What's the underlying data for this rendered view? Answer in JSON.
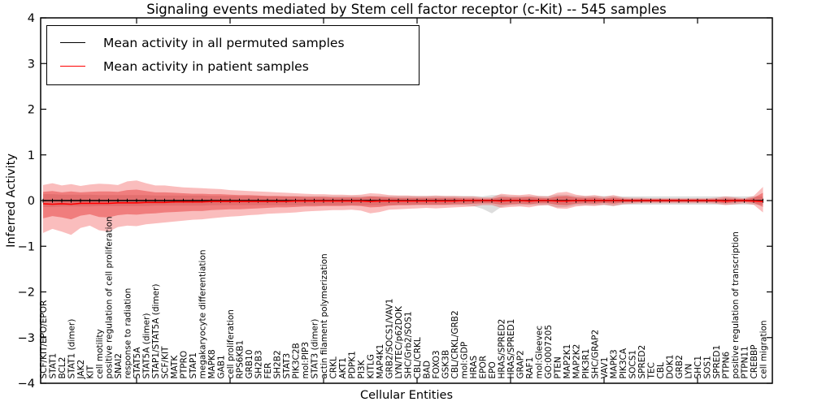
{
  "figure": {
    "title": "Signaling events mediated by Stem cell factor receptor (c-Kit) -- 545 samples",
    "xlabel": "Cellular Entities",
    "ylabel": "Inferred Activity"
  },
  "legend": {
    "position": "upper left",
    "entries": [
      {
        "label": "Mean activity in all permuted samples",
        "color": "#000000"
      },
      {
        "label": "Mean activity in patient samples",
        "color": "#ff0000"
      }
    ]
  },
  "colors": {
    "frame": "#000000",
    "patient_line": "#ff0000",
    "permuted_line": "#000000",
    "patient_band_outer": "rgba(240,50,50,0.32)",
    "patient_band_inner": "rgba(225,30,30,0.40)",
    "permuted_band": "rgba(128,128,128,0.27)"
  },
  "chart_data": {
    "type": "line",
    "title": "Signaling events mediated by Stem cell factor receptor (c-Kit) -- 545 samples",
    "xlabel": "Cellular Entities",
    "ylabel": "Inferred Activity",
    "ylim": [
      -4,
      4
    ],
    "yticks": [
      4,
      3,
      2,
      1,
      0,
      -1,
      -2,
      -3,
      -4
    ],
    "x_major_tick_indices": [
      10,
      20,
      30,
      40,
      50,
      60,
      70
    ],
    "grid": false,
    "legend_position": "upper left",
    "categories": [
      "SCF/KIT/EPO/EPOR",
      "STAT1",
      "BCL2",
      "STAT1 (dimer)",
      "JAK2",
      "KIT",
      "cell motility",
      "positive regulation of cell proliferation",
      "SNAI2",
      "response to radiation",
      "STAT5A",
      "STAT5A (dimer)",
      "STAP1/STAT5A (dimer)",
      "SCF/KIT",
      "MATK",
      "PTPRO",
      "STAP1",
      "megakaryocyte differentiation",
      "MAPK8",
      "GAB1",
      "cell proliferation",
      "RPS6KB1",
      "GRB10",
      "SH2B3",
      "FER",
      "SH2B2",
      "STAT3",
      "PIK3C2B",
      "mol:PIP3",
      "STAT3 (dimer)",
      "actin filament polymerization",
      "CRKL",
      "AKT1",
      "PDPK1",
      "PI3K",
      "KITLG",
      "MAP4K1",
      "GRB2/SOCS1/VAV1",
      "LYN/TEC/p62DOK",
      "SHC/Grb2/SOS1",
      "CBL/CRKL",
      "BAD",
      "FOXO3",
      "GSK3B",
      "CBL/CRKL/GRB2",
      "mol:GDP",
      "HRAS",
      "EPOR",
      "EPO",
      "HRAS/SPRED2",
      "HRAS/SPRED1",
      "GRAP2",
      "RAF1",
      "mol:Gleevec",
      "GO:0007205",
      "PTEN",
      "MAP2K1",
      "MAP2K2",
      "PIK3R1",
      "SHC/GRAP2",
      "VAV1",
      "MAPK3",
      "PIK3CA",
      "SOCS1",
      "SPRED2",
      "TEC",
      "CBL",
      "DOK1",
      "GRB2",
      "LYN",
      "SHC1",
      "SOS1",
      "SPRED1",
      "PTPN6",
      "positive regulation of transcription",
      "PTPN11",
      "CREBBP",
      "cell migration"
    ],
    "series": [
      {
        "name": "Mean activity in all permuted samples",
        "color": "#000000",
        "constant": 0.0,
        "marker": "tick"
      },
      {
        "name": "Mean activity in patient samples",
        "color": "#ff0000",
        "values": [
          -0.07,
          -0.08,
          -0.07,
          -0.08,
          -0.06,
          -0.06,
          -0.06,
          -0.06,
          -0.05,
          -0.05,
          -0.05,
          -0.04,
          -0.04,
          -0.04,
          -0.03,
          -0.03,
          -0.03,
          -0.03,
          -0.02,
          -0.02,
          -0.02,
          -0.02,
          -0.02,
          -0.02,
          -0.02,
          -0.02,
          -0.02,
          -0.01,
          -0.01,
          -0.01,
          -0.01,
          -0.01,
          -0.01,
          -0.01,
          -0.01,
          -0.02,
          -0.01,
          -0.01,
          -0.01,
          -0.01,
          -0.01,
          -0.01,
          -0.01,
          -0.01,
          -0.01,
          0,
          0,
          0,
          0,
          -0.01,
          0,
          0,
          -0.01,
          0,
          0,
          -0.01,
          -0.01,
          0,
          0,
          0,
          0,
          0,
          0,
          0,
          0,
          0,
          0,
          0,
          0,
          0,
          0,
          0,
          0,
          -0.01,
          0,
          0,
          -0.01,
          -0.02
        ]
      }
    ],
    "bands": [
      {
        "name": "permuted-activity-range",
        "color": "rgba(128,128,128,0.27)",
        "hi": [
          0.14,
          0.14,
          0.13,
          0.13,
          0.13,
          0.13,
          0.12,
          0.12,
          0.12,
          0.12,
          0.12,
          0.12,
          0.11,
          0.11,
          0.11,
          0.11,
          0.11,
          0.11,
          0.1,
          0.1,
          0.1,
          0.1,
          0.1,
          0.1,
          0.1,
          0.1,
          0.1,
          0.1,
          0.1,
          0.1,
          0.1,
          0.1,
          0.1,
          0.1,
          0.1,
          0.1,
          0.1,
          0.1,
          0.1,
          0.1,
          0.1,
          0.1,
          0.1,
          0.1,
          0.1,
          0.1,
          0.1,
          0.09,
          0.12,
          0.12,
          0.1,
          0.1,
          0.1,
          0.1,
          0.1,
          0.13,
          0.13,
          0.1,
          0.1,
          0.1,
          0.1,
          0.1,
          0.09,
          0.09,
          0.09,
          0.09,
          0.09,
          0.09,
          0.09,
          0.09,
          0.09,
          0.09,
          0.09,
          0.09,
          0.09,
          0.09,
          0.09,
          0.09
        ],
        "lo": [
          -0.14,
          -0.14,
          -0.13,
          -0.13,
          -0.13,
          -0.13,
          -0.12,
          -0.12,
          -0.12,
          -0.12,
          -0.12,
          -0.12,
          -0.11,
          -0.11,
          -0.11,
          -0.11,
          -0.11,
          -0.11,
          -0.1,
          -0.1,
          -0.1,
          -0.1,
          -0.1,
          -0.1,
          -0.1,
          -0.1,
          -0.1,
          -0.1,
          -0.1,
          -0.1,
          -0.1,
          -0.1,
          -0.1,
          -0.1,
          -0.1,
          -0.1,
          -0.1,
          -0.1,
          -0.1,
          -0.1,
          -0.1,
          -0.1,
          -0.1,
          -0.1,
          -0.1,
          -0.1,
          -0.12,
          -0.18,
          -0.28,
          -0.14,
          -0.1,
          -0.1,
          -0.1,
          -0.1,
          -0.1,
          -0.15,
          -0.14,
          -0.1,
          -0.1,
          -0.1,
          -0.1,
          -0.12,
          -0.09,
          -0.09,
          -0.09,
          -0.09,
          -0.09,
          -0.09,
          -0.09,
          -0.09,
          -0.09,
          -0.09,
          -0.09,
          -0.09,
          -0.09,
          -0.09,
          -0.09,
          -0.09
        ]
      },
      {
        "name": "patient-activity-range-outer",
        "color": "rgba(240,50,50,0.32)",
        "hi": [
          0.34,
          0.38,
          0.33,
          0.36,
          0.32,
          0.35,
          0.37,
          0.36,
          0.34,
          0.42,
          0.44,
          0.38,
          0.33,
          0.33,
          0.31,
          0.29,
          0.28,
          0.27,
          0.26,
          0.25,
          0.23,
          0.22,
          0.21,
          0.2,
          0.19,
          0.18,
          0.17,
          0.16,
          0.15,
          0.14,
          0.14,
          0.13,
          0.13,
          0.12,
          0.13,
          0.16,
          0.15,
          0.12,
          0.11,
          0.11,
          0.1,
          0.1,
          0.11,
          0.1,
          0.1,
          0.09,
          0.09,
          0.07,
          0.07,
          0.15,
          0.13,
          0.12,
          0.14,
          0.1,
          0.09,
          0.17,
          0.19,
          0.13,
          0.1,
          0.12,
          0.08,
          0.12,
          0.07,
          0.06,
          0.06,
          0.05,
          0.05,
          0.05,
          0.05,
          0.05,
          0.05,
          0.05,
          0.06,
          0.09,
          0.07,
          0.05,
          0.1,
          0.3
        ],
        "lo": [
          -0.71,
          -0.62,
          -0.68,
          -0.75,
          -0.6,
          -0.55,
          -0.65,
          -0.68,
          -0.58,
          -0.55,
          -0.56,
          -0.52,
          -0.5,
          -0.48,
          -0.46,
          -0.44,
          -0.42,
          -0.41,
          -0.39,
          -0.37,
          -0.35,
          -0.34,
          -0.32,
          -0.31,
          -0.29,
          -0.28,
          -0.27,
          -0.26,
          -0.24,
          -0.23,
          -0.22,
          -0.21,
          -0.21,
          -0.2,
          -0.22,
          -0.28,
          -0.25,
          -0.2,
          -0.19,
          -0.18,
          -0.17,
          -0.16,
          -0.17,
          -0.16,
          -0.15,
          -0.14,
          -0.13,
          -0.1,
          -0.1,
          -0.16,
          -0.14,
          -0.13,
          -0.15,
          -0.11,
          -0.1,
          -0.17,
          -0.18,
          -0.13,
          -0.11,
          -0.12,
          -0.09,
          -0.12,
          -0.08,
          -0.07,
          -0.06,
          -0.06,
          -0.06,
          -0.06,
          -0.06,
          -0.06,
          -0.06,
          -0.06,
          -0.07,
          -0.1,
          -0.08,
          -0.06,
          -0.09,
          -0.26
        ]
      },
      {
        "name": "patient-activity-range-inner",
        "color": "rgba(225,30,30,0.40)",
        "hi": [
          0.19,
          0.21,
          0.18,
          0.2,
          0.18,
          0.19,
          0.2,
          0.2,
          0.19,
          0.23,
          0.24,
          0.21,
          0.18,
          0.18,
          0.17,
          0.16,
          0.15,
          0.15,
          0.14,
          0.14,
          0.13,
          0.12,
          0.12,
          0.11,
          0.1,
          0.1,
          0.09,
          0.09,
          0.08,
          0.08,
          0.08,
          0.07,
          0.07,
          0.07,
          0.07,
          0.09,
          0.08,
          0.07,
          0.06,
          0.06,
          0.06,
          0.06,
          0.06,
          0.06,
          0.06,
          0.05,
          0.05,
          0.04,
          0.04,
          0.08,
          0.07,
          0.07,
          0.08,
          0.06,
          0.05,
          0.09,
          0.1,
          0.07,
          0.06,
          0.07,
          0.04,
          0.07,
          0.04,
          0.03,
          0.03,
          0.03,
          0.03,
          0.03,
          0.03,
          0.03,
          0.03,
          0.03,
          0.03,
          0.05,
          0.04,
          0.03,
          0.06,
          0.17
        ],
        "lo": [
          -0.39,
          -0.34,
          -0.37,
          -0.41,
          -0.33,
          -0.3,
          -0.36,
          -0.37,
          -0.32,
          -0.3,
          -0.31,
          -0.29,
          -0.28,
          -0.26,
          -0.25,
          -0.24,
          -0.23,
          -0.23,
          -0.21,
          -0.2,
          -0.19,
          -0.19,
          -0.18,
          -0.17,
          -0.16,
          -0.15,
          -0.15,
          -0.14,
          -0.13,
          -0.13,
          -0.12,
          -0.12,
          -0.12,
          -0.11,
          -0.12,
          -0.15,
          -0.14,
          -0.11,
          -0.1,
          -0.1,
          -0.09,
          -0.09,
          -0.09,
          -0.09,
          -0.08,
          -0.08,
          -0.07,
          -0.06,
          -0.06,
          -0.09,
          -0.08,
          -0.07,
          -0.08,
          -0.06,
          -0.06,
          -0.09,
          -0.1,
          -0.07,
          -0.06,
          -0.07,
          -0.05,
          -0.07,
          -0.04,
          -0.04,
          -0.03,
          -0.03,
          -0.03,
          -0.03,
          -0.03,
          -0.03,
          -0.03,
          -0.03,
          -0.04,
          -0.06,
          -0.04,
          -0.03,
          -0.05,
          -0.14
        ]
      }
    ]
  }
}
